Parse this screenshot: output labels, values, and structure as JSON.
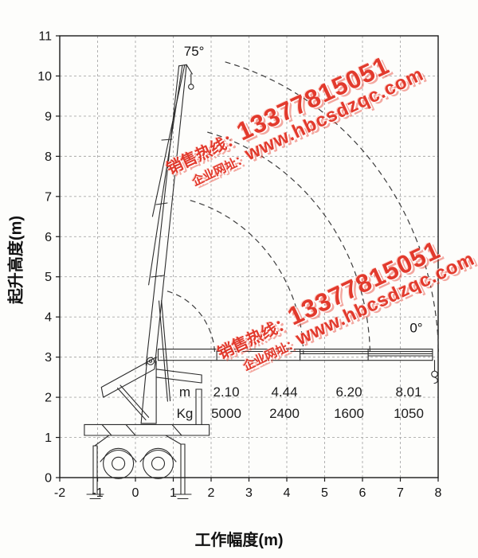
{
  "page": {
    "background": "#fdfdfb"
  },
  "watermark": {
    "hotline_label": "销售热线：",
    "hotline_number": "13377815051",
    "website_label": "企业网址：",
    "website_url": "www.hbcsdzqc.com",
    "color": "#e02c1e"
  },
  "chart_data": {
    "type": "line",
    "xlabel": "工作幅度(m)",
    "ylabel": "起升高度(m)",
    "xlim": [
      -2,
      8
    ],
    "ylim": [
      0,
      11
    ],
    "x_ticks": [
      -2,
      -1,
      0,
      1,
      2,
      3,
      4,
      5,
      6,
      7,
      8
    ],
    "y_ticks": [
      0,
      1,
      2,
      3,
      4,
      5,
      6,
      7,
      8,
      9,
      10,
      11
    ],
    "grid": true,
    "angle_labels": [
      {
        "text": "75°",
        "x": 1.55,
        "y": 10.5
      },
      {
        "text": "0°",
        "x": 7.42,
        "y": 3.62
      }
    ],
    "envelope": {
      "center": {
        "x": 0.4,
        "y": 3.0
      },
      "radii_m": [
        1.7,
        4.04,
        5.8,
        7.61
      ],
      "angle_start_deg": 0,
      "angle_end_deg": 75
    },
    "load_table": {
      "radius_label": "m",
      "radius_values": [
        "2.10",
        "4.44",
        "6.20",
        "8.01"
      ],
      "load_label": "Kg",
      "load_values": [
        "5000",
        "2400",
        "1600",
        "1050"
      ]
    }
  }
}
